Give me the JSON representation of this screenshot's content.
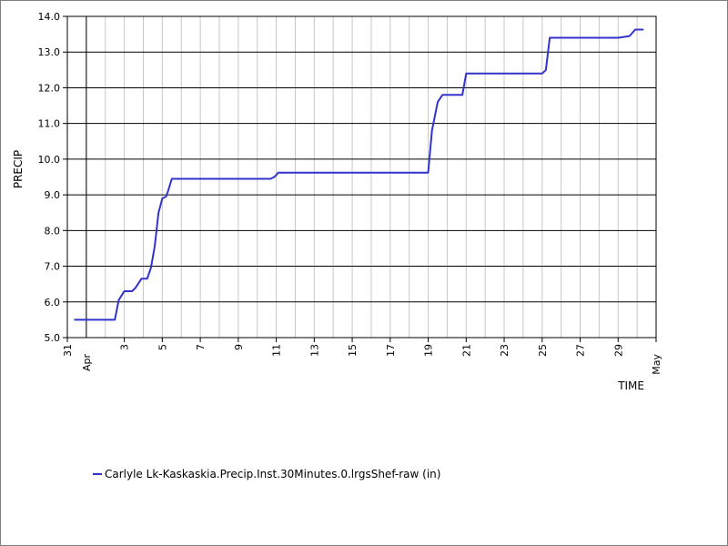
{
  "chart_data": {
    "type": "line",
    "title": "",
    "xlabel": "TIME",
    "ylabel": "PRECIP",
    "ylim": [
      5.0,
      14.0
    ],
    "yticks": [
      "5.0",
      "6.0",
      "7.0",
      "8.0",
      "9.0",
      "10.0",
      "11.0",
      "12.0",
      "13.0",
      "14.0"
    ],
    "xlim_days": [
      0,
      31
    ],
    "xticks": [
      {
        "day": 0,
        "label": "31"
      },
      {
        "day": 3,
        "label": "3"
      },
      {
        "day": 5,
        "label": "5"
      },
      {
        "day": 7,
        "label": "7"
      },
      {
        "day": 9,
        "label": "9"
      },
      {
        "day": 11,
        "label": "11"
      },
      {
        "day": 13,
        "label": "13"
      },
      {
        "day": 15,
        "label": "15"
      },
      {
        "day": 17,
        "label": "17"
      },
      {
        "day": 19,
        "label": "19"
      },
      {
        "day": 21,
        "label": "21"
      },
      {
        "day": 23,
        "label": "23"
      },
      {
        "day": 25,
        "label": "25"
      },
      {
        "day": 27,
        "label": "27"
      },
      {
        "day": 29,
        "label": "29"
      },
      {
        "day": 31,
        "label": "May"
      }
    ],
    "month_labels": [
      {
        "day": 1,
        "label": "Apr"
      },
      {
        "day": 31,
        "label": "May"
      }
    ],
    "grid": true,
    "legend_position": "bottom-left",
    "series": [
      {
        "name": "Carlyle Lk-Kaskaskia.Precip.Inst.30Minutes.0.lrgsShef-raw (in)",
        "color": "#3333cc",
        "points": [
          [
            0.4,
            5.5
          ],
          [
            2.5,
            5.5
          ],
          [
            2.7,
            6.05
          ],
          [
            3.0,
            6.3
          ],
          [
            3.4,
            6.3
          ],
          [
            3.6,
            6.4
          ],
          [
            3.9,
            6.65
          ],
          [
            4.2,
            6.65
          ],
          [
            4.4,
            6.95
          ],
          [
            4.6,
            7.55
          ],
          [
            4.8,
            8.5
          ],
          [
            5.0,
            8.9
          ],
          [
            5.2,
            8.95
          ],
          [
            5.3,
            9.1
          ],
          [
            5.5,
            9.45
          ],
          [
            10.7,
            9.45
          ],
          [
            10.9,
            9.5
          ],
          [
            11.1,
            9.62
          ],
          [
            19.0,
            9.62
          ],
          [
            19.2,
            10.8
          ],
          [
            19.5,
            11.6
          ],
          [
            19.75,
            11.8
          ],
          [
            20.8,
            11.8
          ],
          [
            21.0,
            12.4
          ],
          [
            25.0,
            12.4
          ],
          [
            25.2,
            12.5
          ],
          [
            25.4,
            13.4
          ],
          [
            29.0,
            13.4
          ],
          [
            29.6,
            13.45
          ],
          [
            29.9,
            13.63
          ],
          [
            30.3,
            13.63
          ]
        ]
      }
    ]
  }
}
